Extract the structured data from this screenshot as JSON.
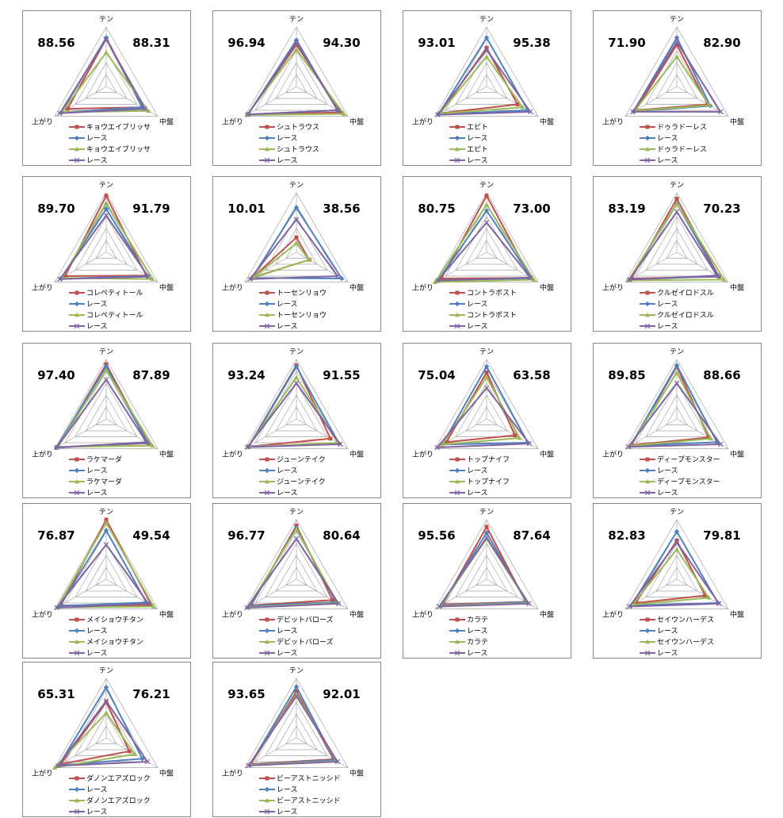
{
  "chart_data": [
    {
      "type": "radar",
      "axes": [
        "テン",
        "中盤",
        "上がり"
      ],
      "left_score": "88.56",
      "right_score": "88.31",
      "series": [
        {
          "name": "キョウエイブリッサ",
          "values": [
            80,
            70,
            75
          ]
        },
        {
          "name": "レース",
          "values": [
            82,
            70,
            87
          ]
        },
        {
          "name": "キョウエイブリッサ",
          "values": [
            57,
            82,
            86
          ]
        },
        {
          "name": "レース",
          "values": [
            80,
            75,
            90
          ]
        }
      ]
    },
    {
      "type": "radar",
      "axes": [
        "テン",
        "中盤",
        "上がり"
      ],
      "left_score": "96.94",
      "right_score": "94.30",
      "series": [
        {
          "name": "シュトラウス",
          "values": [
            70,
            87,
            95
          ]
        },
        {
          "name": "レース",
          "values": [
            78,
            80,
            94
          ]
        },
        {
          "name": "シュトラウス",
          "values": [
            62,
            92,
            96
          ]
        },
        {
          "name": "レース",
          "values": [
            74,
            80,
            94
          ]
        }
      ]
    },
    {
      "type": "radar",
      "axes": [
        "テン",
        "中盤",
        "上がり"
      ],
      "left_score": "93.01",
      "right_score": "95.38",
      "series": [
        {
          "name": "エピト",
          "values": [
            65,
            60,
            90
          ]
        },
        {
          "name": "レース",
          "values": [
            82,
            80,
            93
          ]
        },
        {
          "name": "エピト",
          "values": [
            50,
            70,
            91
          ]
        },
        {
          "name": "レース",
          "values": [
            62,
            85,
            95
          ]
        }
      ]
    },
    {
      "type": "radar",
      "axes": [
        "テン",
        "中盤",
        "上がり"
      ],
      "left_score": "71.90",
      "right_score": "82.90",
      "series": [
        {
          "name": "ドゥラドーレス",
          "values": [
            70,
            60,
            80
          ]
        },
        {
          "name": "レース",
          "values": [
            82,
            65,
            84
          ]
        },
        {
          "name": "ドゥラドーレス",
          "values": [
            50,
            63,
            82
          ]
        },
        {
          "name": "レース",
          "values": [
            75,
            85,
            85
          ]
        }
      ]
    },
    {
      "type": "radar",
      "axes": [
        "テン",
        "中盤",
        "上がり"
      ],
      "left_score": "89.70",
      "right_score": "91.79",
      "series": [
        {
          "name": "コレペティトール",
          "values": [
            95,
            78,
            80
          ]
        },
        {
          "name": "レース",
          "values": [
            73,
            80,
            88
          ]
        },
        {
          "name": "コレペティトール",
          "values": [
            83,
            90,
            86
          ]
        },
        {
          "name": "レース",
          "values": [
            62,
            82,
            90
          ]
        }
      ]
    },
    {
      "type": "radar",
      "axes": [
        "テン",
        "中盤",
        "上がり"
      ],
      "left_score": "10.01",
      "right_score": "38.56",
      "ylim": [
        0,
        100
      ],
      "series": [
        {
          "name": "トーセンリョウ",
          "values": [
            25,
            25,
            85
          ]
        },
        {
          "name": "レース",
          "values": [
            75,
            88,
            86
          ]
        },
        {
          "name": "トーセンリョウ",
          "values": [
            15,
            25,
            82
          ]
        },
        {
          "name": "レース",
          "values": [
            55,
            80,
            90
          ]
        }
      ]
    },
    {
      "type": "radar",
      "axes": [
        "テン",
        "中盤",
        "上がり"
      ],
      "left_score": "80.75",
      "right_score": "73.00",
      "series": [
        {
          "name": "コントラポスト",
          "values": [
            95,
            86,
            88
          ]
        },
        {
          "name": "レース",
          "values": [
            70,
            88,
            94
          ]
        },
        {
          "name": "コントラポスト",
          "values": [
            80,
            92,
            100
          ]
        },
        {
          "name": "レース",
          "values": [
            50,
            85,
            95
          ]
        }
      ]
    },
    {
      "type": "radar",
      "axes": [
        "テン",
        "中盤",
        "上がり"
      ],
      "left_score": "83.19",
      "right_score": "70.23",
      "series": [
        {
          "name": "クルゼイロドスル",
          "values": [
            90,
            82,
            88
          ]
        },
        {
          "name": "レース",
          "values": [
            82,
            80,
            92
          ]
        },
        {
          "name": "クルゼイロドスル",
          "values": [
            82,
            92,
            94
          ]
        },
        {
          "name": "レース",
          "values": [
            68,
            78,
            92
          ]
        }
      ]
    },
    {
      "type": "radar",
      "axes": [
        "テン",
        "中盤",
        "上がり"
      ],
      "left_score": "97.40",
      "right_score": "87.89",
      "series": [
        {
          "name": "ラケマーダ",
          "values": [
            92,
            82,
            95
          ]
        },
        {
          "name": "レース",
          "values": [
            88,
            80,
            97
          ]
        },
        {
          "name": "ラケマーダ",
          "values": [
            82,
            90,
            94
          ]
        },
        {
          "name": "レース",
          "values": [
            66,
            78,
            96
          ]
        }
      ]
    },
    {
      "type": "radar",
      "axes": [
        "テン",
        "中盤",
        "上がり"
      ],
      "left_score": "93.24",
      "right_score": "91.55",
      "series": [
        {
          "name": "ジューンテイク",
          "values": [
            90,
            66,
            93
          ]
        },
        {
          "name": "レース",
          "values": [
            88,
            83,
            92
          ]
        },
        {
          "name": "ジューンテイク",
          "values": [
            70,
            80,
            94
          ]
        },
        {
          "name": "レース",
          "values": [
            60,
            85,
            95
          ]
        }
      ]
    },
    {
      "type": "radar",
      "axes": [
        "テン",
        "中盤",
        "上がり"
      ],
      "left_score": "75.04",
      "right_score": "63.58",
      "series": [
        {
          "name": "トップナイフ",
          "values": [
            78,
            55,
            78
          ]
        },
        {
          "name": "レース",
          "values": [
            88,
            80,
            86
          ]
        },
        {
          "name": "トップナイフ",
          "values": [
            70,
            64,
            86
          ]
        },
        {
          "name": "レース",
          "values": [
            52,
            83,
            96
          ]
        }
      ]
    },
    {
      "type": "radar",
      "axes": [
        "テン",
        "中盤",
        "上がり"
      ],
      "left_score": "89.85",
      "right_score": "88.66",
      "series": [
        {
          "name": "ディープモンスター",
          "values": [
            88,
            62,
            88
          ]
        },
        {
          "name": "レース",
          "values": [
            90,
            78,
            90
          ]
        },
        {
          "name": "ディープモンスター",
          "values": [
            78,
            66,
            91
          ]
        },
        {
          "name": "レース",
          "values": [
            60,
            85,
            94
          ]
        }
      ]
    },
    {
      "type": "radar",
      "axes": [
        "テン",
        "中盤",
        "上がり"
      ],
      "left_score": "76.87",
      "right_score": "49.54",
      "series": [
        {
          "name": "メイショウチタン",
          "values": [
            100,
            88,
            88
          ]
        },
        {
          "name": "レース",
          "values": [
            82,
            78,
            90
          ]
        },
        {
          "name": "メイショウチタン",
          "values": [
            95,
            92,
            95
          ]
        },
        {
          "name": "レース",
          "values": [
            58,
            82,
            96
          ]
        }
      ]
    },
    {
      "type": "radar",
      "axes": [
        "テン",
        "中盤",
        "上がり"
      ],
      "left_score": "96.77",
      "right_score": "80.64",
      "series": [
        {
          "name": "デビットバローズ",
          "values": [
            90,
            70,
            88
          ]
        },
        {
          "name": "レース",
          "values": [
            86,
            77,
            90
          ]
        },
        {
          "name": "デビットバローズ",
          "values": [
            84,
            80,
            94
          ]
        },
        {
          "name": "レース",
          "values": [
            68,
            82,
            96
          ]
        }
      ]
    },
    {
      "type": "radar",
      "axes": [
        "テン",
        "中盤",
        "上がり"
      ],
      "left_score": "95.56",
      "right_score": "87.64",
      "series": [
        {
          "name": "カラテ",
          "values": [
            88,
            76,
            85
          ]
        },
        {
          "name": "レース",
          "values": [
            78,
            77,
            88
          ]
        },
        {
          "name": "カラテ",
          "values": [
            68,
            80,
            90
          ]
        },
        {
          "name": "レース",
          "values": [
            70,
            82,
            92
          ]
        }
      ]
    },
    {
      "type": "radar",
      "axes": [
        "テン",
        "中盤",
        "上がり"
      ],
      "left_score": "82.83",
      "right_score": "79.81",
      "series": [
        {
          "name": "セイウンハーデス",
          "values": [
            65,
            55,
            80
          ]
        },
        {
          "name": "レース",
          "values": [
            80,
            80,
            88
          ]
        },
        {
          "name": "セイウンハーデス",
          "values": [
            50,
            62,
            86
          ]
        },
        {
          "name": "レース",
          "values": [
            62,
            82,
            92
          ]
        }
      ]
    },
    {
      "type": "radar",
      "axes": [
        "テン",
        "中盤",
        "上がり"
      ],
      "left_score": "65.31",
      "right_score": "76.21",
      "series": [
        {
          "name": "ダノンエアズロック",
          "values": [
            60,
            45,
            88
          ]
        },
        {
          "name": "レース",
          "values": [
            85,
            70,
            92
          ]
        },
        {
          "name": "ダノンエアズロック",
          "values": [
            42,
            55,
            100
          ]
        },
        {
          "name": "レース",
          "values": [
            62,
            80,
            94
          ]
        }
      ]
    },
    {
      "type": "radar",
      "axes": [
        "テン",
        "中盤",
        "上がり"
      ],
      "left_score": "93.65",
      "right_score": "92.01",
      "series": [
        {
          "name": "ビーアストニッシド",
          "values": [
            78,
            72,
            88
          ]
        },
        {
          "name": "レース",
          "values": [
            86,
            74,
            90
          ]
        },
        {
          "name": "ビーアストニッシド",
          "values": [
            73,
            78,
            91
          ]
        },
        {
          "name": "レース",
          "values": [
            70,
            80,
            93
          ]
        }
      ]
    }
  ],
  "colors": [
    "#c0504d",
    "#4f81bd",
    "#9bbb59",
    "#8064a2"
  ],
  "markers": [
    "square",
    "diamond",
    "triangle",
    "cross"
  ]
}
